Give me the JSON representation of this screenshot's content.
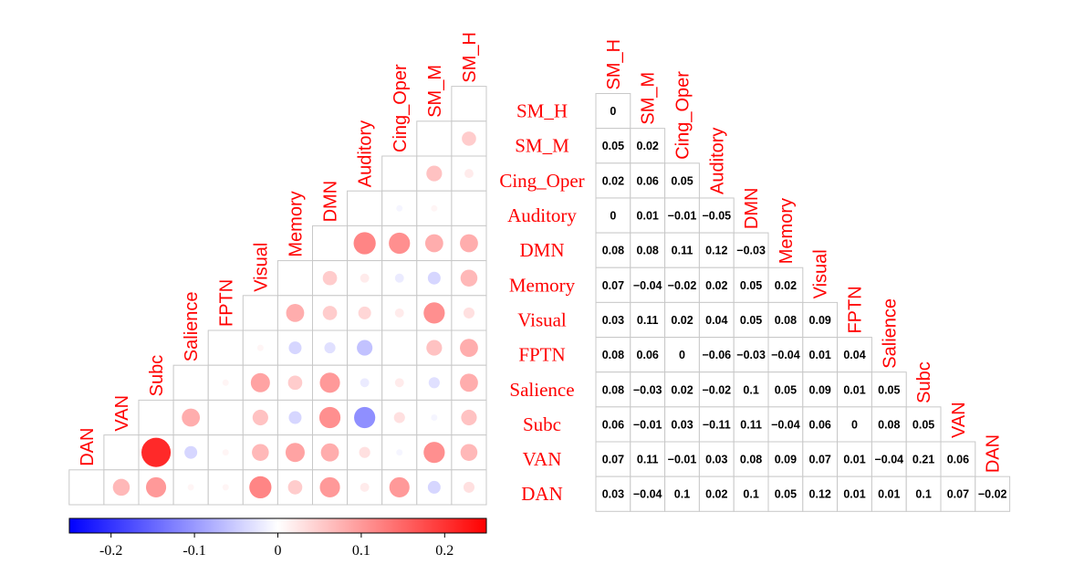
{
  "chart_data": {
    "type": "heatmap",
    "variables": [
      "SM_H",
      "SM_M",
      "Cing_Oper",
      "Auditory",
      "DMN",
      "Memory",
      "Visual",
      "FPTN",
      "Salience",
      "Subc",
      "VAN",
      "DAN"
    ],
    "matrix_lower_triangle": [
      [
        0
      ],
      [
        0.05,
        0.02
      ],
      [
        0.02,
        0.06,
        0.05
      ],
      [
        0,
        0.01,
        -0.01,
        -0.05
      ],
      [
        0.08,
        0.08,
        0.11,
        0.12,
        -0.03
      ],
      [
        0.07,
        -0.04,
        -0.02,
        0.02,
        0.05,
        0.02
      ],
      [
        0.03,
        0.11,
        0.02,
        0.04,
        0.05,
        0.08,
        0.09
      ],
      [
        0.08,
        0.06,
        0,
        -0.06,
        -0.03,
        -0.04,
        0.01,
        0.04
      ],
      [
        0.08,
        -0.03,
        0.02,
        -0.02,
        0.1,
        0.05,
        0.09,
        0.01,
        0.05
      ],
      [
        0.06,
        -0.01,
        0.03,
        -0.11,
        0.11,
        -0.04,
        0.06,
        0,
        0.08,
        0.05
      ],
      [
        0.07,
        0.11,
        -0.01,
        0.03,
        0.08,
        0.09,
        0.07,
        0.01,
        -0.04,
        0.21,
        0.06
      ],
      [
        0.03,
        -0.04,
        0.1,
        0.02,
        0.1,
        0.05,
        0.12,
        0.01,
        0.01,
        0.1,
        0.07,
        -0.02
      ]
    ],
    "colorbar": {
      "range": [
        -0.25,
        0.25
      ],
      "tick_values": [
        -0.2,
        -0.1,
        0,
        0.1,
        0.2
      ],
      "tick_labels": [
        "-0.2",
        "-0.1",
        "0",
        "0.1",
        "0.2"
      ],
      "low_color": "#0000ff",
      "mid_color": "#ffffff",
      "high_color": "#ff0000"
    },
    "label_color": "#ff0000",
    "grid_color": "#c8c8c8"
  }
}
